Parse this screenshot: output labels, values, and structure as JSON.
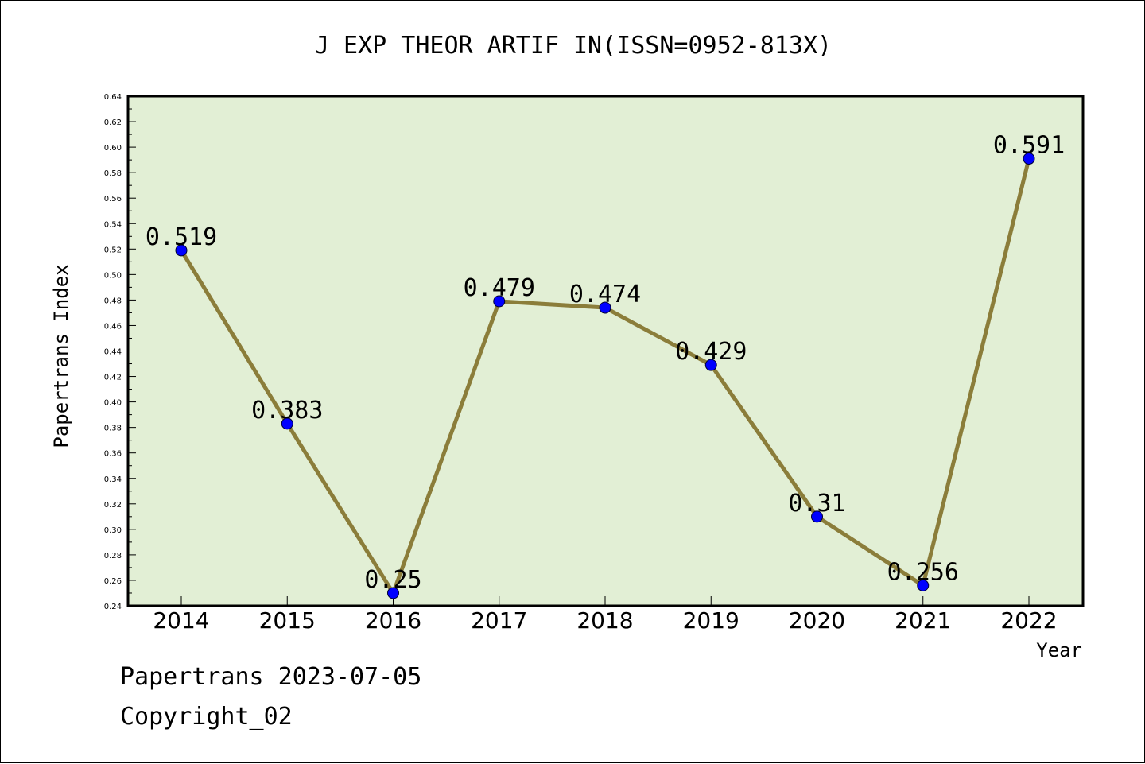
{
  "chart_data": {
    "type": "line",
    "title": "J EXP THEOR ARTIF IN(ISSN=0952-813X)",
    "xlabel": "Year",
    "ylabel": "Papertrans Index",
    "categories": [
      "2014",
      "2015",
      "2016",
      "2017",
      "2018",
      "2019",
      "2020",
      "2021",
      "2022"
    ],
    "series": [
      {
        "values": [
          0.519,
          0.383,
          0.25,
          0.479,
          0.474,
          0.429,
          0.31,
          0.256,
          0.591
        ]
      }
    ],
    "data_labels": [
      "0.519",
      "0.383",
      "0.25",
      "0.479",
      "0.474",
      "0.429",
      "0.31",
      "0.256",
      "0.591"
    ],
    "ylim": [
      0.24,
      0.64
    ],
    "yticks": [
      "0.24",
      "0.26",
      "0.28",
      "0.30",
      "0.32",
      "0.34",
      "0.36",
      "0.38",
      "0.40",
      "0.42",
      "0.44",
      "0.46",
      "0.48",
      "0.50",
      "0.52",
      "0.54",
      "0.56",
      "0.58",
      "0.60",
      "0.62",
      "0.64"
    ],
    "grid": false,
    "colors": {
      "plot_background": "#e2efd5",
      "line": "#8b7d3a",
      "marker": "#0000ff",
      "axis": "#000000"
    }
  },
  "footer": {
    "line1": "Papertrans 2023-07-05",
    "line2": "Copyright_02"
  }
}
